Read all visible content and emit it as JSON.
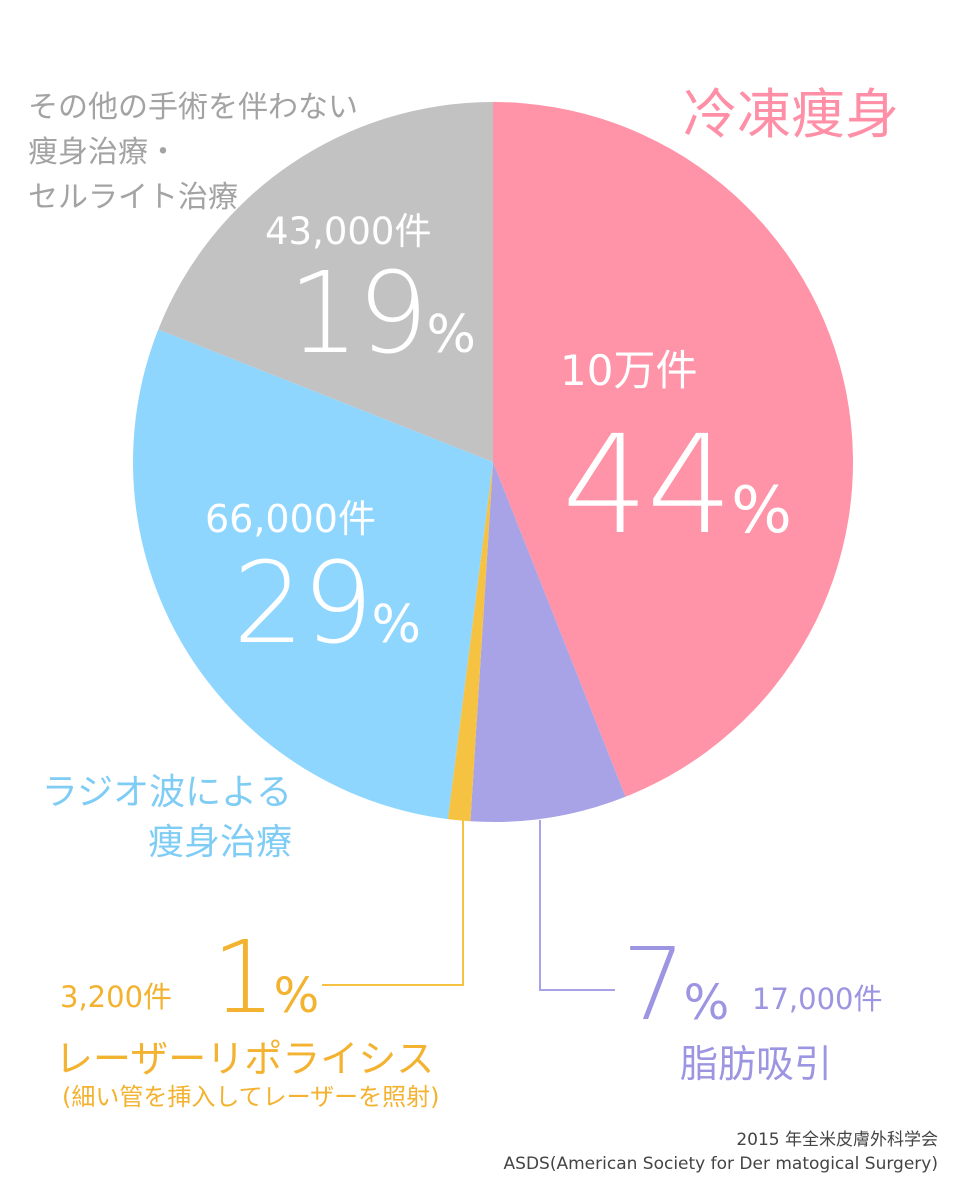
{
  "chart_data": {
    "type": "pie",
    "title": "冷凍痩身",
    "unit": "%",
    "count_unit": "件",
    "start_angle": "12 o'clock",
    "direction": "clockwise",
    "slices": [
      {
        "label": "冷凍痩身",
        "percent": 44,
        "percent_label": "44",
        "count": "10万件",
        "color": "#FF93A8"
      },
      {
        "label": "脂肪吸引",
        "percent": 7,
        "percent_label": "7",
        "count": "17,000件",
        "color": "#A8A3E6"
      },
      {
        "label": "レーザーリポライシス",
        "sublabel": "(細い管を挿入してレーザーを照射)",
        "percent": 1,
        "percent_label": "1",
        "count": "3,200件",
        "color": "#F5C242"
      },
      {
        "label": "ラジオ波による\n痩身治療",
        "percent": 29,
        "percent_label": "29",
        "count": "66,000件",
        "color": "#8FD6FF"
      },
      {
        "label": "その他の手術を伴わない\n痩身治療・\nセルライト治療",
        "percent": 19,
        "percent_label": "19",
        "count": "43,000件",
        "color": "#C2C2C2"
      }
    ],
    "label_colors": {
      "pink": "#FF8FA6",
      "purple": "#9C95E2",
      "orange": "#F3B22F",
      "blue": "#7FCCF5",
      "gray": "#A3A3A3"
    }
  },
  "source": {
    "line1": "2015 年全米皮膚外科学会",
    "line2": "ASDS(American Society for Der matogical Surgery)"
  }
}
